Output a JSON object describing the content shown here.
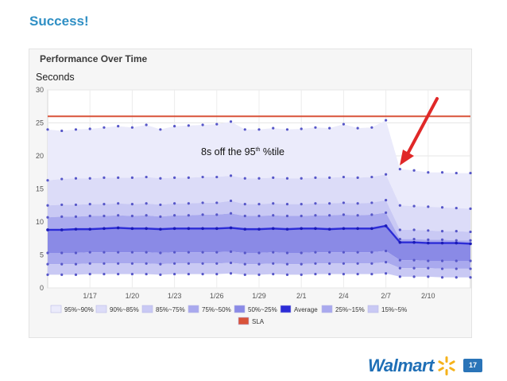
{
  "slide": {
    "title": "Success!",
    "page_number": "17",
    "logo_text": "Walmart"
  },
  "chart_data": {
    "type": "area",
    "title": "Performance Over Time",
    "ylabel": "Seconds",
    "xlabel": "",
    "ylim": [
      0,
      30
    ],
    "y_ticks": [
      0,
      5,
      10,
      15,
      20,
      25,
      30
    ],
    "x_start": "1/14",
    "x_end": "2/13",
    "x_ticks": [
      "1/17",
      "1/20",
      "1/23",
      "1/26",
      "1/29",
      "2/1",
      "2/4",
      "2/7",
      "2/10"
    ],
    "grid": true,
    "legend_position": "bottom",
    "sla": {
      "name": "SLA",
      "value": 26,
      "color": "#d9533a"
    },
    "annotation": {
      "text_before": "8s off the 95",
      "superscript": "th",
      "text_after": " %tile"
    },
    "x": [
      "1/14",
      "1/15",
      "1/16",
      "1/17",
      "1/18",
      "1/19",
      "1/20",
      "1/21",
      "1/22",
      "1/23",
      "1/24",
      "1/25",
      "1/26",
      "1/27",
      "1/28",
      "1/29",
      "1/30",
      "1/31",
      "2/1",
      "2/2",
      "2/3",
      "2/4",
      "2/5",
      "2/6",
      "2/7",
      "2/8",
      "2/9",
      "2/10",
      "2/11",
      "2/12",
      "2/13"
    ],
    "percentiles": [
      {
        "name": "95%~90%",
        "color": "#ebebfb",
        "values": [
          24.0,
          23.8,
          24.0,
          24.1,
          24.3,
          24.5,
          24.3,
          24.7,
          24.0,
          24.5,
          24.6,
          24.7,
          24.8,
          25.2,
          24.0,
          24.0,
          24.2,
          24.0,
          24.1,
          24.3,
          24.2,
          24.8,
          24.2,
          24.3,
          25.4,
          18.0,
          17.8,
          17.5,
          17.5,
          17.4,
          17.4
        ]
      },
      {
        "name": "90%~85%",
        "color": "#dcdcf8",
        "values": [
          16.3,
          16.5,
          16.6,
          16.6,
          16.7,
          16.7,
          16.7,
          16.8,
          16.6,
          16.7,
          16.7,
          16.8,
          16.8,
          17.0,
          16.6,
          16.6,
          16.7,
          16.6,
          16.6,
          16.7,
          16.7,
          16.8,
          16.7,
          16.8,
          17.2,
          12.5,
          12.4,
          12.3,
          12.2,
          12.1,
          12.0
        ]
      },
      {
        "name": "85%~75%",
        "color": "#c9c9f4",
        "values": [
          12.5,
          12.6,
          12.6,
          12.7,
          12.7,
          12.8,
          12.7,
          12.8,
          12.6,
          12.8,
          12.8,
          12.9,
          12.9,
          13.2,
          12.7,
          12.7,
          12.8,
          12.7,
          12.7,
          12.8,
          12.8,
          12.9,
          12.8,
          12.9,
          13.3,
          8.8,
          8.8,
          8.7,
          8.6,
          8.6,
          8.5
        ]
      },
      {
        "name": "75%~50%",
        "color": "#a9a9ee",
        "values": [
          10.7,
          10.8,
          10.8,
          10.9,
          10.9,
          11.0,
          10.9,
          11.0,
          10.8,
          11.0,
          11.0,
          11.1,
          11.1,
          11.3,
          10.9,
          10.9,
          11.0,
          10.9,
          10.9,
          11.0,
          11.0,
          11.1,
          11.0,
          11.1,
          11.4,
          7.4,
          7.4,
          7.3,
          7.3,
          7.2,
          7.2
        ]
      },
      {
        "name": "50%~25%",
        "color": "#8a8ae6",
        "values": [
          8.8,
          8.8,
          8.9,
          8.9,
          9.0,
          9.1,
          9.0,
          9.0,
          8.9,
          9.0,
          9.0,
          9.0,
          9.0,
          9.1,
          8.9,
          8.9,
          9.0,
          8.9,
          9.0,
          9.0,
          8.9,
          9.0,
          9.0,
          9.0,
          9.4,
          6.9,
          6.9,
          6.8,
          6.8,
          6.8,
          6.7
        ]
      },
      {
        "name": "25%~15%",
        "color": "#a9a9ee",
        "values": [
          5.3,
          5.3,
          5.3,
          5.4,
          5.4,
          5.4,
          5.4,
          5.4,
          5.3,
          5.4,
          5.4,
          5.4,
          5.4,
          5.5,
          5.3,
          5.3,
          5.4,
          5.3,
          5.3,
          5.4,
          5.4,
          5.4,
          5.4,
          5.4,
          5.6,
          4.2,
          4.2,
          4.1,
          4.1,
          4.1,
          4.1
        ]
      },
      {
        "name": "15%~5%",
        "color": "#c9c9f4",
        "values": [
          3.6,
          3.6,
          3.6,
          3.7,
          3.7,
          3.7,
          3.7,
          3.7,
          3.6,
          3.7,
          3.7,
          3.7,
          3.7,
          3.8,
          3.6,
          3.6,
          3.7,
          3.6,
          3.6,
          3.7,
          3.7,
          3.7,
          3.7,
          3.7,
          3.9,
          3.0,
          3.0,
          3.0,
          2.9,
          2.9,
          2.9
        ]
      }
    ],
    "floor_values": [
      2.0,
      2.0,
      2.0,
      2.1,
      2.1,
      2.1,
      2.1,
      2.1,
      2.0,
      2.1,
      2.1,
      2.1,
      2.1,
      2.2,
      2.0,
      2.0,
      2.1,
      2.0,
      2.0,
      2.1,
      2.1,
      2.1,
      2.1,
      2.1,
      2.2,
      1.7,
      1.7,
      1.7,
      1.6,
      1.6,
      1.6
    ],
    "average": {
      "name": "Average",
      "color": "#2c2cd6",
      "values": [
        8.8,
        8.8,
        8.9,
        8.9,
        9.0,
        9.1,
        9.0,
        9.0,
        8.9,
        9.0,
        9.0,
        9.0,
        9.0,
        9.1,
        8.9,
        8.9,
        9.0,
        8.9,
        9.0,
        9.0,
        8.9,
        9.0,
        9.0,
        9.0,
        9.4,
        6.9,
        6.9,
        6.8,
        6.8,
        6.8,
        6.7
      ]
    },
    "legend": [
      "95%~90%",
      "90%~85%",
      "85%~75%",
      "75%~50%",
      "50%~25%",
      "Average",
      "25%~15%",
      "15%~5%",
      "SLA"
    ]
  }
}
